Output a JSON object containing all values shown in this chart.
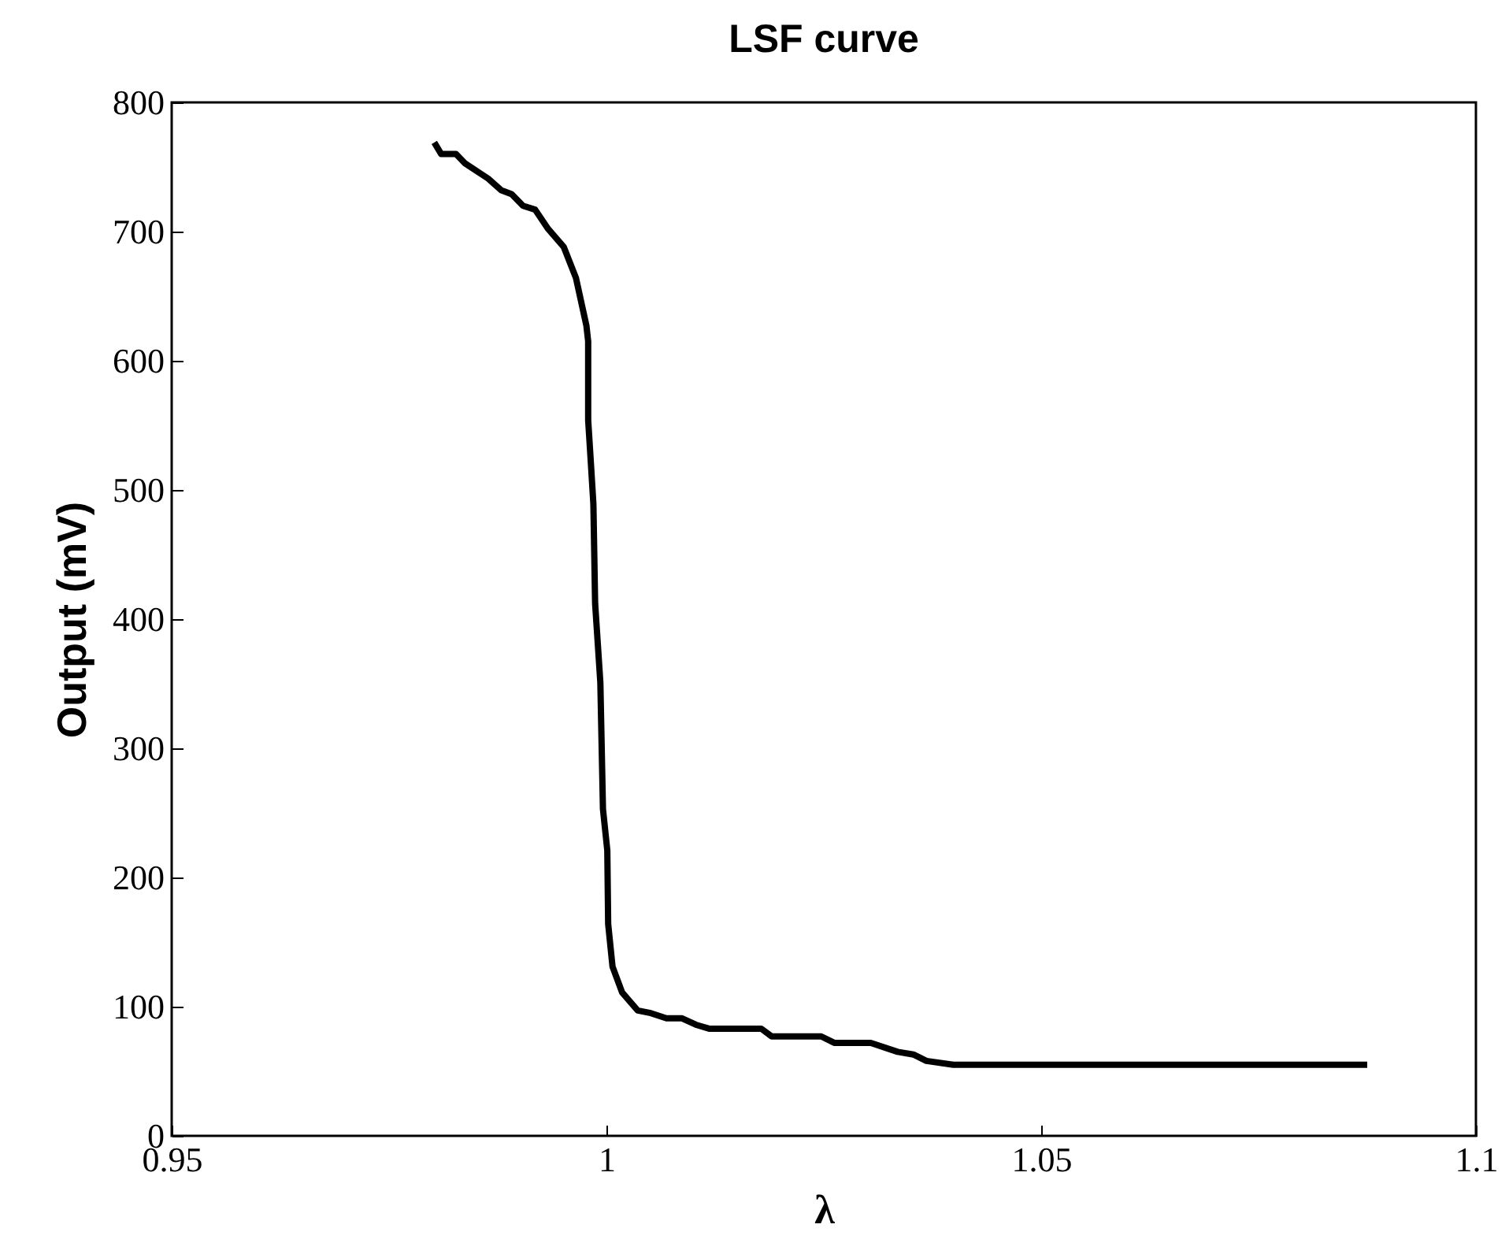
{
  "chart_data": {
    "type": "line",
    "title": "LSF curve",
    "xlabel": "λ",
    "ylabel": "Output (mV)",
    "xlim": [
      0.95,
      1.1
    ],
    "xticks": [
      0.95,
      1,
      1.05,
      1.1
    ],
    "ylim": [
      0,
      800
    ],
    "yticks": [
      0,
      100,
      200,
      300,
      400,
      500,
      600,
      700,
      800
    ],
    "grid": false,
    "line_style": "solid",
    "marker": "none",
    "series": [
      {
        "color": "#000000",
        "x": [
          0.9802,
          0.981,
          0.9827,
          0.9837,
          0.9864,
          0.9879,
          0.9891,
          0.9904,
          0.9918,
          0.9933,
          0.9951,
          0.9965,
          0.9977,
          0.9979,
          0.9979,
          0.9982,
          0.9985,
          0.9987,
          0.9993,
          0.9996,
          1.0001,
          1.0002,
          1.0007,
          1.0018,
          1.0036,
          1.0051,
          1.0069,
          1.0087,
          1.0103,
          1.0118,
          1.0178,
          1.019,
          1.0247,
          1.0262,
          1.0304,
          1.0335,
          1.0353,
          1.0368,
          1.0399,
          1.0875
        ],
        "values": [
          769,
          760,
          760,
          753,
          741,
          732,
          729,
          720,
          717,
          702,
          688,
          664,
          627,
          615,
          554,
          522,
          489,
          412,
          351,
          253,
          221,
          164,
          131,
          111,
          97,
          95,
          91,
          91,
          86,
          83,
          83,
          77,
          77,
          72,
          72,
          65,
          63,
          58,
          55,
          55
        ]
      }
    ]
  }
}
